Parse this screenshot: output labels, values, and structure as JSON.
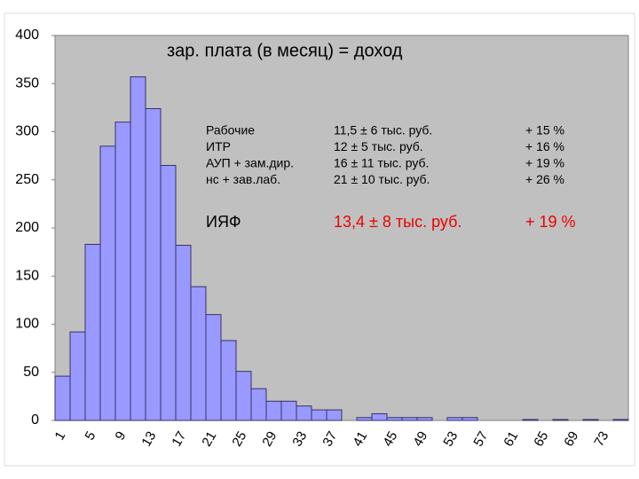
{
  "chart_data": {
    "type": "bar",
    "title": "зар. плата (в месяц) = доход",
    "categories": [
      "1",
      null,
      "5",
      null,
      "9",
      null,
      "13",
      null,
      "17",
      null,
      "21",
      null,
      "25",
      null,
      "29",
      null,
      "33",
      null,
      "37",
      null,
      "41",
      null,
      "45",
      null,
      "49",
      null,
      "53",
      null,
      "57",
      null,
      "61",
      null,
      "65",
      null,
      "69",
      null,
      "73",
      null
    ],
    "values": [
      46,
      92,
      183,
      285,
      310,
      357,
      324,
      265,
      182,
      139,
      110,
      83,
      51,
      33,
      20,
      20,
      15,
      11,
      11,
      0,
      3,
      7,
      3,
      3,
      3,
      0,
      3,
      3,
      0,
      0,
      0,
      1,
      0,
      1,
      0,
      1,
      0,
      1
    ],
    "color": "#9999ff",
    "ylim": [
      0,
      400
    ],
    "yticks": [
      0,
      50,
      100,
      150,
      200,
      250,
      300,
      350,
      400
    ],
    "table": {
      "rows": [
        [
          "Рабочие",
          "11,5 ± 6 тыс. руб.",
          "+ 15 %"
        ],
        [
          "ИТР",
          "12 ± 5 тыс. руб.",
          "+ 16 %"
        ],
        [
          "АУП + зам.дир.",
          "16 ± 11 тыс. руб.",
          "+ 19 %"
        ],
        [
          "нс + зав.лаб.",
          "21 ± 10 тыс. руб.",
          "+ 26 %"
        ]
      ],
      "highlight": [
        "ИЯФ",
        "13,4 ± 8 тыс. руб.",
        "+ 19 %"
      ]
    }
  }
}
